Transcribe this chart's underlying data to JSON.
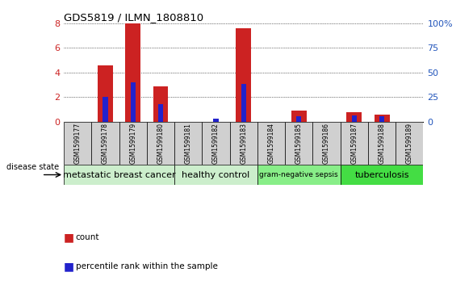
{
  "title": "GDS5819 / ILMN_1808810",
  "samples": [
    "GSM1599177",
    "GSM1599178",
    "GSM1599179",
    "GSM1599180",
    "GSM1599181",
    "GSM1599182",
    "GSM1599183",
    "GSM1599184",
    "GSM1599185",
    "GSM1599186",
    "GSM1599187",
    "GSM1599188",
    "GSM1599189"
  ],
  "count_values": [
    0.0,
    4.6,
    8.0,
    2.85,
    0.0,
    0.0,
    7.6,
    0.0,
    0.9,
    0.0,
    0.75,
    0.6,
    0.0
  ],
  "percentile_values": [
    0.0,
    2.05,
    3.2,
    1.4,
    0.0,
    0.25,
    3.05,
    0.0,
    0.45,
    0.0,
    0.5,
    0.45,
    0.0
  ],
  "ylim": [
    0,
    8
  ],
  "yticks": [
    0,
    2,
    4,
    6,
    8
  ],
  "y2ticks": [
    0,
    25,
    50,
    75,
    100
  ],
  "bar_color": "#cc2222",
  "percentile_color": "#2222cc",
  "bar_width": 0.55,
  "pct_bar_width": 0.18,
  "groups": [
    {
      "label": "metastatic breast cancer",
      "start": 0,
      "end": 4
    },
    {
      "label": "healthy control",
      "start": 4,
      "end": 7
    },
    {
      "label": "gram-negative sepsis",
      "start": 7,
      "end": 10
    },
    {
      "label": "tuberculosis",
      "start": 10,
      "end": 13
    }
  ],
  "group_colors": [
    "#cceecc",
    "#cceecc",
    "#88ee88",
    "#44dd44"
  ],
  "sample_cell_color": "#d0d0d0",
  "xlabel_color": "#cc2222",
  "y2label_color": "#2255bb",
  "disease_state_label": "disease state",
  "legend_count": "count",
  "legend_percentile": "percentile rank within the sample",
  "background_color": "#ffffff"
}
